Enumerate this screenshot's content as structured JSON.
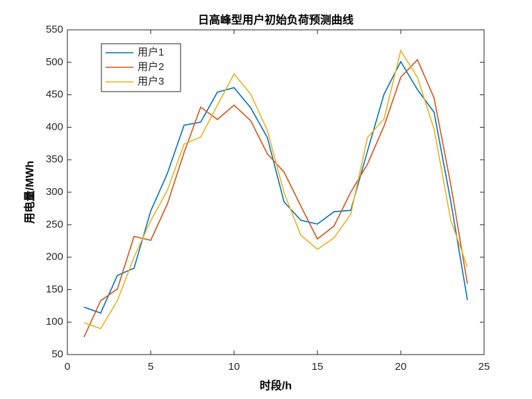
{
  "chart_data": {
    "type": "line",
    "title": "日高峰型用户初始负荷预测曲线",
    "x_label": "时段/h",
    "y_label": "用电量/MWh",
    "x": [
      1,
      2,
      3,
      4,
      5,
      6,
      7,
      8,
      9,
      10,
      11,
      12,
      13,
      14,
      15,
      16,
      17,
      18,
      19,
      20,
      21,
      22,
      23,
      24
    ],
    "series": [
      {
        "name": "用户1",
        "color": "#0072bd",
        "values": [
          123,
          114,
          172,
          183,
          271,
          329,
          403,
          408,
          454,
          461,
          430,
          384,
          285,
          257,
          251,
          270,
          272,
          363,
          451,
          501,
          458,
          423,
          286,
          134
        ]
      },
      {
        "name": "用户2",
        "color": "#d95319",
        "values": [
          77,
          133,
          151,
          232,
          226,
          282,
          361,
          431,
          412,
          434,
          410,
          359,
          331,
          279,
          228,
          248,
          300,
          343,
          402,
          477,
          504,
          445,
          312,
          159
        ]
      },
      {
        "name": "用户3",
        "color": "#edb120",
        "values": [
          99,
          90,
          133,
          200,
          256,
          303,
          374,
          385,
          434,
          482,
          451,
          395,
          299,
          234,
          212,
          230,
          266,
          384,
          413,
          518,
          477,
          397,
          257,
          185
        ]
      }
    ],
    "xlim": [
      0,
      25
    ],
    "xticks": [
      0,
      5,
      10,
      15,
      20,
      25
    ],
    "ylim": [
      50,
      550
    ],
    "yticks": [
      50,
      100,
      150,
      200,
      250,
      300,
      350,
      400,
      450,
      500,
      550
    ],
    "grid": false,
    "legend": "upper-left"
  }
}
